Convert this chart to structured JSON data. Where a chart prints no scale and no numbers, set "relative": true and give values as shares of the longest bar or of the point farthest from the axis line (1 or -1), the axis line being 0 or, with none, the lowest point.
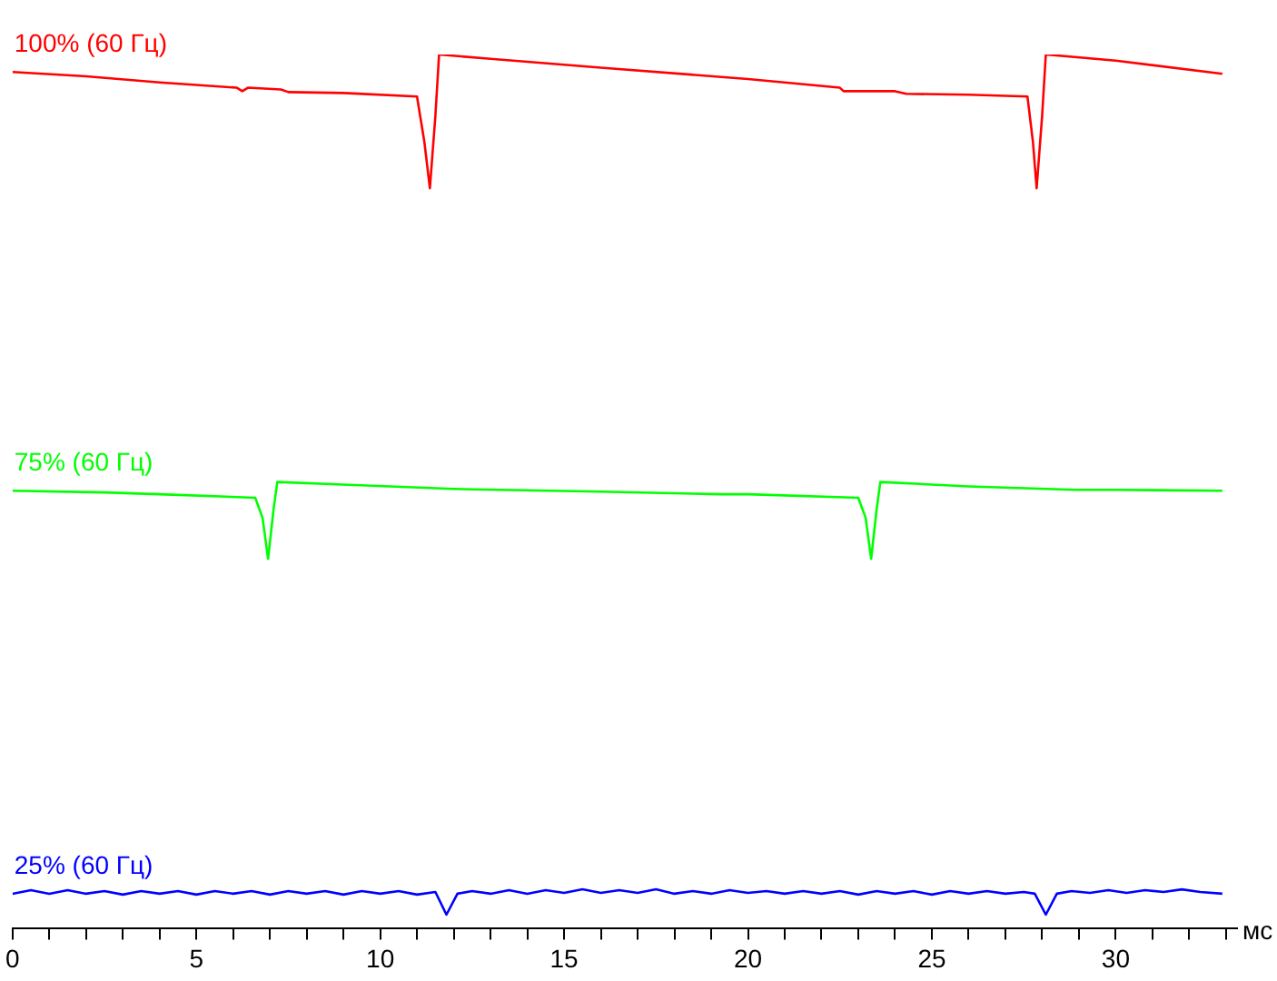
{
  "chart_data": {
    "type": "line",
    "relative": true,
    "xlabel": "мс",
    "xlim": [
      0,
      33.3
    ],
    "xticks": [
      0,
      {
        "value": 1,
        "label": null
      },
      {
        "value": 2,
        "label": null
      },
      {
        "value": 3,
        "label": null
      },
      {
        "value": 4,
        "label": null
      },
      5,
      {
        "value": 6,
        "label": null
      },
      {
        "value": 7,
        "label": null
      },
      {
        "value": 8,
        "label": null
      },
      {
        "value": 9,
        "label": null
      },
      10,
      {
        "value": 11,
        "label": null
      },
      {
        "value": 12,
        "label": null
      },
      {
        "value": 13,
        "label": null
      },
      {
        "value": 14,
        "label": null
      },
      15,
      {
        "value": 16,
        "label": null
      },
      {
        "value": 17,
        "label": null
      },
      {
        "value": 18,
        "label": null
      },
      {
        "value": 19,
        "label": null
      },
      20,
      {
        "value": 21,
        "label": null
      },
      {
        "value": 22,
        "label": null
      },
      {
        "value": 23,
        "label": null
      },
      {
        "value": 24,
        "label": null
      },
      25,
      {
        "value": 26,
        "label": null
      },
      {
        "value": 27,
        "label": null
      },
      {
        "value": 28,
        "label": null
      },
      {
        "value": 29,
        "label": null
      },
      30,
      {
        "value": 31,
        "label": null
      },
      {
        "value": 32,
        "label": null
      },
      {
        "value": 33,
        "label": null
      }
    ],
    "legend": false,
    "marker": "none",
    "line_style": "solid",
    "series": [
      {
        "name": "100% (60 Гц)",
        "color": "#ff0000",
        "x": [
          0,
          2,
          4,
          6.1,
          6.25,
          6.4,
          7.3,
          7.5,
          9,
          11,
          11.2,
          11.35,
          11.5,
          11.6,
          13,
          16,
          20,
          22.5,
          22.6,
          24,
          24.3,
          26,
          27.6,
          27.75,
          27.85,
          28,
          28.1,
          30,
          32.9
        ],
        "values": [
          0.98,
          0.975,
          0.968,
          0.962,
          0.958,
          0.962,
          0.96,
          0.957,
          0.956,
          0.952,
          0.9,
          0.847,
          0.93,
          1,
          0.995,
          0.985,
          0.972,
          0.962,
          0.958,
          0.958,
          0.955,
          0.954,
          0.952,
          0.9,
          0.847,
          0.93,
          1,
          0.993,
          0.978
        ]
      },
      {
        "name": "75% (60 Гц)",
        "color": "#00ff00",
        "x": [
          0,
          2.5,
          4,
          6.6,
          6.8,
          6.95,
          7.1,
          7.2,
          9,
          12,
          16,
          19.2,
          20,
          23,
          23.2,
          23.35,
          23.5,
          23.6,
          26,
          28.9,
          30,
          32.9
        ],
        "values": [
          0.501,
          0.499,
          0.497,
          0.493,
          0.47,
          0.423,
          0.48,
          0.511,
          0.508,
          0.503,
          0.5,
          0.497,
          0.497,
          0.493,
          0.47,
          0.423,
          0.48,
          0.511,
          0.506,
          0.502,
          0.502,
          0.501
        ]
      },
      {
        "name": "25% (60 Гц)",
        "color": "#0000ff",
        "x": [
          0,
          0.5,
          1,
          1.5,
          2,
          2.5,
          3,
          3.5,
          4,
          4.5,
          5,
          5.5,
          6,
          6.5,
          7,
          7.5,
          8,
          8.5,
          9,
          9.5,
          10,
          10.5,
          11,
          11.5,
          11.8,
          12.1,
          12.5,
          13,
          13.5,
          14,
          14.5,
          15,
          15.5,
          16,
          16.5,
          17,
          17.5,
          18,
          18.5,
          19,
          19.5,
          20,
          20.5,
          21,
          21.5,
          22,
          22.5,
          23,
          23.5,
          24,
          24.5,
          25,
          25.5,
          26,
          26.5,
          27,
          27.5,
          27.8,
          28.1,
          28.4,
          28.8,
          29.3,
          29.8,
          30.3,
          30.8,
          31.3,
          31.8,
          32.3,
          32.9
        ],
        "values": [
          0.04,
          0.044,
          0.04,
          0.044,
          0.04,
          0.043,
          0.039,
          0.043,
          0.04,
          0.043,
          0.039,
          0.043,
          0.04,
          0.043,
          0.039,
          0.043,
          0.04,
          0.043,
          0.039,
          0.043,
          0.04,
          0.043,
          0.039,
          0.042,
          0.016,
          0.04,
          0.043,
          0.04,
          0.044,
          0.04,
          0.044,
          0.041,
          0.045,
          0.041,
          0.044,
          0.041,
          0.045,
          0.04,
          0.043,
          0.04,
          0.044,
          0.041,
          0.043,
          0.04,
          0.043,
          0.04,
          0.043,
          0.039,
          0.043,
          0.04,
          0.043,
          0.039,
          0.043,
          0.04,
          0.043,
          0.04,
          0.042,
          0.04,
          0.016,
          0.04,
          0.043,
          0.041,
          0.044,
          0.041,
          0.044,
          0.042,
          0.045,
          0.042,
          0.04
        ]
      }
    ]
  }
}
